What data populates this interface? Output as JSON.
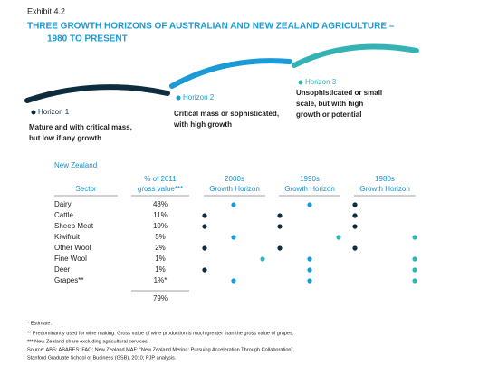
{
  "exhibit": "Exhibit 4.2",
  "title": [
    "THREE GROWTH HORIZONS OF AUSTRALIAN AND NEW ZEALAND AGRICULTURE –",
    "1980 TO PRESENT"
  ],
  "horizons": [
    {
      "name": "Horizon 1",
      "color": "#0d2d3e",
      "description": [
        "Mature and with critical mass,",
        "but low if any growth"
      ]
    },
    {
      "name": "Horizon 2",
      "color": "#1a9ad6",
      "description": [
        "Critical mass or sophisticated,",
        "with high growth"
      ]
    },
    {
      "name": "Horizon 3",
      "color": "#35b3b4",
      "description": [
        "Unsophisticated or small",
        "scale, but with high",
        "growth or potential"
      ]
    }
  ],
  "table": {
    "region": "New Zealand",
    "headers": [
      [
        "Sector"
      ],
      [
        "% of 2011",
        "gross value***"
      ],
      [
        "2000s",
        "Growth Horizon"
      ],
      [
        "1990s",
        "Growth Horizon"
      ],
      [
        "1980s",
        "Growth Horizon"
      ]
    ],
    "rows": [
      {
        "sector": "Dairy",
        "share": "48%",
        "horizon": [
          2,
          2,
          1
        ]
      },
      {
        "sector": "Cattle",
        "share": "11%",
        "horizon": [
          1,
          1,
          1
        ]
      },
      {
        "sector": "Sheep Meat",
        "share": "10%",
        "horizon": [
          1,
          1,
          1
        ]
      },
      {
        "sector": "Kiwifruit",
        "share": "5%",
        "horizon": [
          2,
          3,
          3
        ]
      },
      {
        "sector": "Other Wool",
        "share": "2%",
        "horizon": [
          1,
          1,
          1
        ]
      },
      {
        "sector": "Fine Wool",
        "share": "1%",
        "horizon": [
          3,
          2,
          3
        ]
      },
      {
        "sector": "Deer",
        "share": "1%",
        "horizon": [
          1,
          2,
          3
        ]
      },
      {
        "sector": "Grapes**",
        "share": "1%*",
        "horizon": [
          2,
          2,
          3
        ]
      }
    ],
    "total": "79%"
  },
  "footnotes": [
    "*   Estimate.",
    "**  Predominantly used for wine making. Gross value of wine production is much greater than the gross value of grapes.",
    "*** New Zealand share excluding agricultural services.",
    "Source:  ABS; ABARES; FAO; New Zealand MAF; “New Zealand Merino: Pursuing Acceleration Through Collaboration”,",
    "Stanford Graduate School of Business (GSB), 2010; PJP analysis."
  ]
}
